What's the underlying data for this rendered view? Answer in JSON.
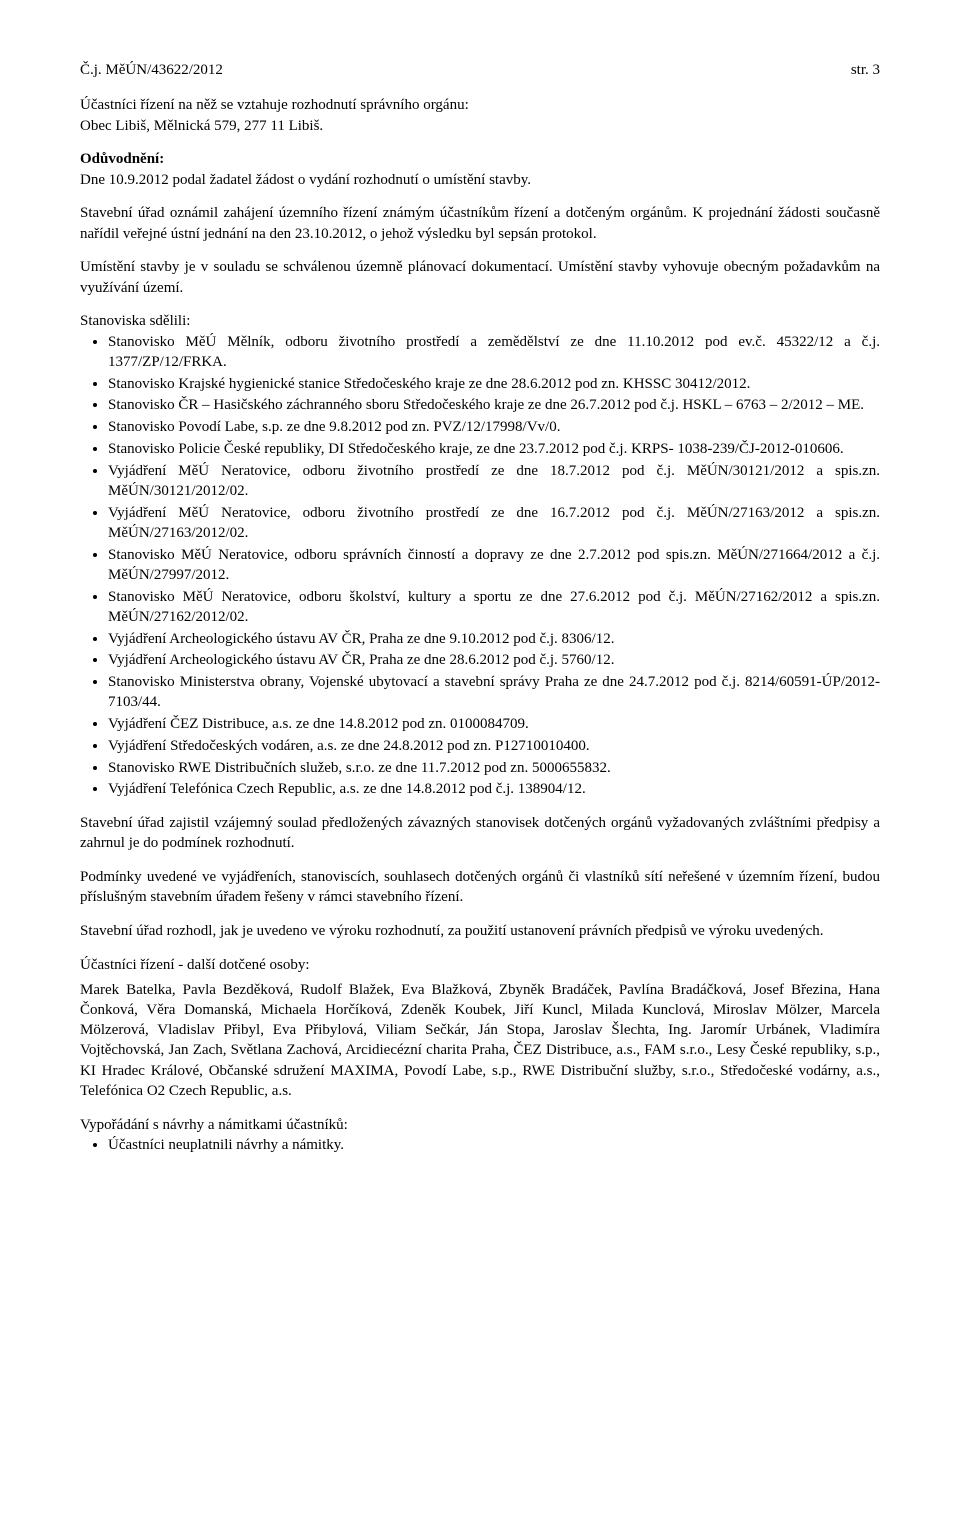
{
  "header": {
    "ref": "Č.j. MěÚN/43622/2012",
    "page": "str. 3"
  },
  "p1": "Účastníci řízení na něž se vztahuje rozhodnutí správního orgánu:",
  "p2": "Obec Libiš, Mělnická 579, 277 11  Libiš.",
  "reason_h": "Odůvodnění:",
  "p3": "Dne 10.9.2012 podal žadatel žádost o vydání rozhodnutí o umístění stavby.",
  "p4": "Stavební úřad oznámil zahájení územního řízení známým účastníkům řízení a dotčeným orgánům. K projednání žádosti současně nařídil veřejné ústní jednání na den 23.10.2012, o jehož výsledku byl sepsán protokol.",
  "p5": "Umístění stavby je v souladu se schválenou územně plánovací dokumentací. Umístění stavby vyhovuje obecným požadavkům na využívání území.",
  "stanoviska_h": "Stanoviska sdělili:",
  "stanoviska": [
    "Stanovisko MěÚ Mělník, odboru životního prostředí a zemědělství ze dne 11.10.2012 pod ev.č. 45322/12 a č.j. 1377/ZP/12/FRKA.",
    "Stanovisko Krajské hygienické stanice Středočeského kraje ze dne 28.6.2012 pod zn. KHSSC 30412/2012.",
    "Stanovisko ČR – Hasičského záchranného sboru Středočeského kraje ze dne 26.7.2012 pod č.j. HSKL – 6763 – 2/2012 – ME.",
    "Stanovisko Povodí Labe, s.p. ze dne 9.8.2012 pod zn. PVZ/12/17998/Vv/0.",
    "Stanovisko Policie České republiky, DI Středočeského kraje, ze dne 23.7.2012 pod č.j. KRPS- 1038-239/ČJ-2012-010606.",
    "Vyjádření MěÚ Neratovice, odboru životního prostředí ze dne 18.7.2012 pod č.j. MěÚN/30121/2012 a spis.zn. MěÚN/30121/2012/02.",
    "Vyjádření MěÚ Neratovice, odboru životního prostředí ze dne 16.7.2012 pod č.j. MěÚN/27163/2012 a spis.zn. MěÚN/27163/2012/02.",
    "Stanovisko MěÚ Neratovice, odboru správních činností a dopravy ze dne 2.7.2012 pod spis.zn. MěÚN/271664/2012 a č.j. MěÚN/27997/2012.",
    "Stanovisko MěÚ Neratovice, odboru školství, kultury a sportu ze dne 27.6.2012 pod č.j. MěÚN/27162/2012 a spis.zn. MěÚN/27162/2012/02.",
    "Vyjádření Archeologického ústavu AV ČR, Praha ze dne 9.10.2012 pod č.j. 8306/12.",
    "Vyjádření Archeologického ústavu AV ČR, Praha ze dne 28.6.2012 pod č.j. 5760/12.",
    "Stanovisko Ministerstva obrany, Vojenské ubytovací a stavební správy Praha ze dne 24.7.2012 pod č.j. 8214/60591-ÚP/2012-7103/44.",
    "Vyjádření ČEZ Distribuce, a.s. ze dne 14.8.2012 pod zn. 0100084709.",
    "Vyjádření Středočeských vodáren, a.s. ze dne 24.8.2012 pod zn. P12710010400.",
    "Stanovisko RWE Distribučních služeb, s.r.o. ze dne 11.7.2012 pod zn. 5000655832.",
    "Vyjádření Telefónica Czech Republic, a.s. ze dne 14.8.2012 pod č.j. 138904/12."
  ],
  "p6": "Stavební úřad zajistil vzájemný soulad předložených závazných stanovisek dotčených orgánů vyžadovaných zvláštními předpisy a zahrnul je do podmínek rozhodnutí.",
  "p7": "Podmínky uvedené ve vyjádřeních, stanoviscích, souhlasech dotčených orgánů či vlastníků sítí neřešené v územním řízení, budou příslušným stavebním úřadem řešeny v rámci stavebního řízení.",
  "p8": "Stavební úřad rozhodl, jak je uvedeno ve výroku rozhodnutí, za použití ustanovení právních předpisů ve výroku uvedených.",
  "p9": "Účastníci řízení - další dotčené osoby:",
  "p10": "Marek Batelka, Pavla Bezděková, Rudolf Blažek, Eva Blažková, Zbyněk Bradáček, Pavlína Bradáčková, Josef Březina, Hana Čonková, Věra Domanská, Michaela Horčíková, Zdeněk Koubek, Jiří Kuncl, Milada Kunclová, Miroslav Mölzer, Marcela Mölzerová, Vladislav Přibyl, Eva Přibylová, Viliam Sečkár, Ján Stopa, Jaroslav Šlechta, Ing. Jaromír Urbánek, Vladimíra Vojtěchovská, Jan Zach, Světlana Zachová, Arcidiecézní charita Praha, ČEZ Distribuce, a.s., FAM s.r.o., Lesy České republiky, s.p., KI Hradec Králové, Občanské sdružení MAXIMA, Povodí Labe, s.p., RWE Distribuční služby, s.r.o., Středočeské vodárny, a.s., Telefónica O2 Czech Republic, a.s.",
  "p11": "Vypořádání s návrhy a námitkami účastníků:",
  "final": [
    "Účastníci neuplatnili návrhy a námitky."
  ]
}
